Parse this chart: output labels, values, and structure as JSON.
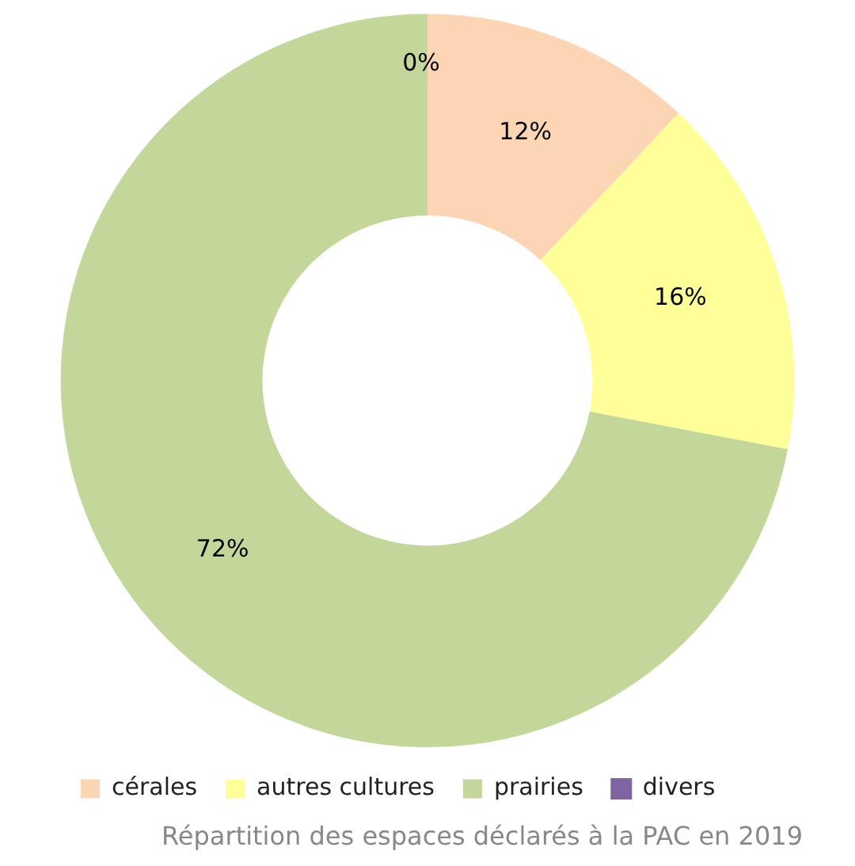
{
  "chart_data": {
    "type": "donut",
    "title": "Répartition des espaces déclarés à la PAC en 2019",
    "categories": [
      "cérales",
      "autres cultures",
      "prairies",
      "divers"
    ],
    "values": [
      12,
      16,
      72,
      0
    ],
    "value_labels": [
      "12%",
      "16%",
      "72%",
      "0%"
    ],
    "colors": [
      "#fcd5b5",
      "#ffff99",
      "#c4d79b",
      "#8064a2"
    ],
    "legend": "bottom left"
  }
}
